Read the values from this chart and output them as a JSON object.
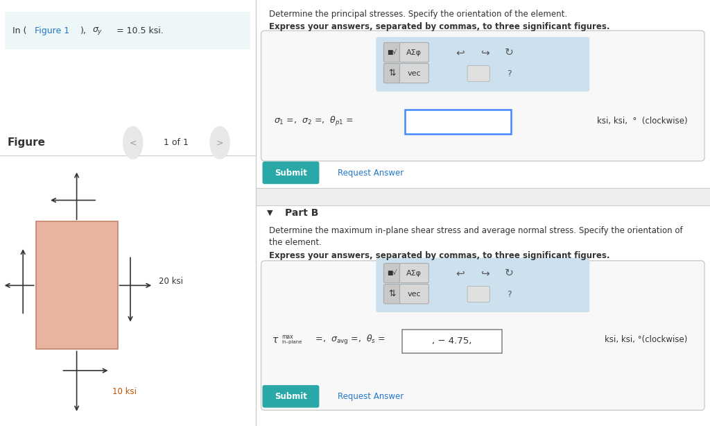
{
  "bg_color": "#ffffff",
  "left_panel_bg": "#eef7f8",
  "box_color": "#e8b4a0",
  "box_edge_color": "#c4846a",
  "arrow_color": "#333333",
  "label_color_20": "#333333",
  "label_color_10": "#c05000",
  "right_top_text1": "Determine the principal stresses. Specify the orientation of the element.",
  "right_top_text2": "Express your answers, separated by commas, to three significant figures.",
  "partB_text1": "Determine the maximum in-plane shear stress and average normal stress. Specify the orientation of",
  "partB_text2": "the element.",
  "partB_bold": "Express your answers, separated by commas, to three significant figures.",
  "answer_box_value": ", − 4.75,",
  "submit_color": "#2aa8a8",
  "toolbar_bg": "#cce0ee",
  "input_border_color": "#4488ff"
}
